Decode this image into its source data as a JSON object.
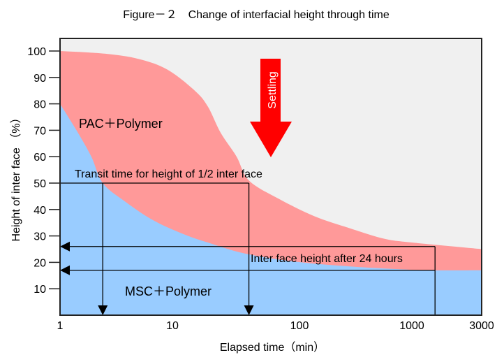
{
  "chart_data": {
    "type": "area",
    "title": "Figure－２　Change of interfacial height through time",
    "xlabel": "Elapsed time（min）",
    "ylabel": "Height of inter face （%）",
    "x_scale": "log",
    "xlim": [
      1,
      3000
    ],
    "ylim": [
      0,
      105
    ],
    "x_ticks": [
      "1",
      "10",
      "100",
      "1000",
      "3000"
    ],
    "y_ticks": [
      "100",
      "90",
      "80",
      "70",
      "60",
      "50",
      "40",
      "30",
      "20",
      "10"
    ],
    "grid": false,
    "series": [
      {
        "name": "PAC＋Polymer",
        "color": "#ff9999",
        "x": [
          1,
          2.5,
          5,
          9,
          15,
          19,
          24,
          32,
          40,
          69,
          135,
          276,
          560,
          1000,
          3000
        ],
        "y": [
          100,
          99,
          97,
          93,
          85,
          79,
          69,
          60,
          51,
          44,
          37.5,
          33,
          29,
          27.5,
          25
        ]
      },
      {
        "name": "MSC＋Polymer",
        "color": "#99ccff",
        "x": [
          1,
          1.4,
          1.9,
          2.4,
          3.8,
          6.7,
          11.8,
          19,
          40,
          135,
          1000,
          3000
        ],
        "y": [
          80,
          70,
          60,
          50,
          43,
          36,
          31,
          27.5,
          23,
          19.5,
          17.2,
          17
        ]
      }
    ],
    "background_color": "#f0f0f0",
    "annotations": {
      "half_height_label": "Transit time for height of 1/2 inter face",
      "half_height_value": 50,
      "half_height_times": [
        2.4,
        40
      ],
      "after_24h_label": "Inter face height after 24 hours",
      "after_24h_time": 1440,
      "after_24h_values": [
        26,
        17
      ],
      "settling_label": "Settling",
      "settling_color": "#ff0000"
    }
  }
}
